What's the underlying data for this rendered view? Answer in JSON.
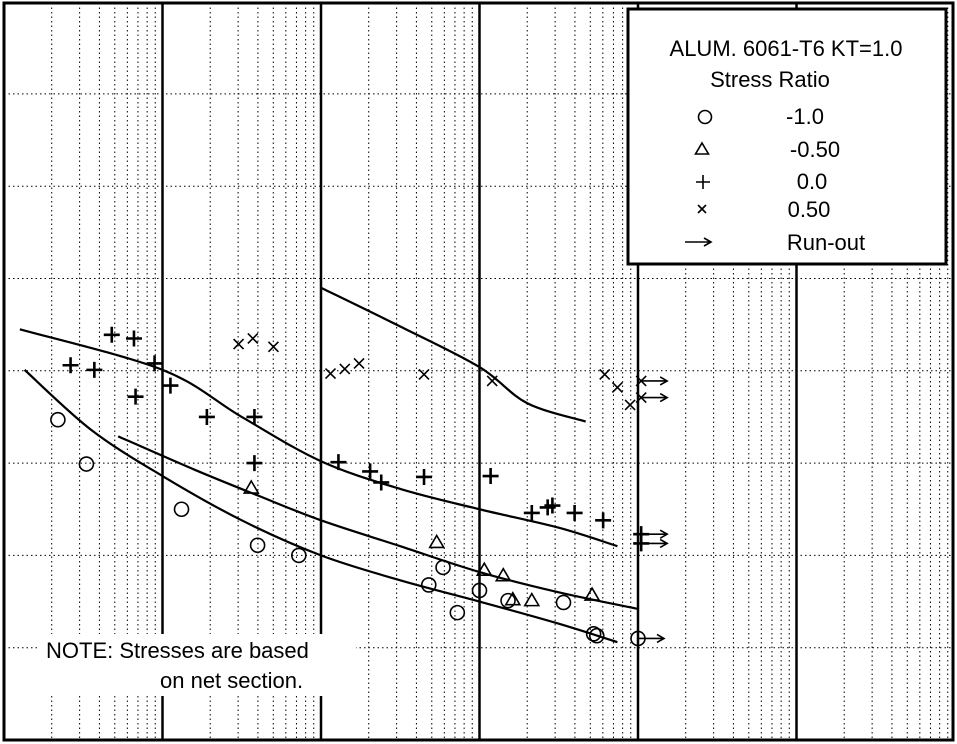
{
  "legend": {
    "title_line1": "ALUM. 6061-T6 KT=1.0",
    "title_line2": "Stress Ratio",
    "entries": [
      {
        "marker": "circle",
        "label": "-1.0"
      },
      {
        "marker": "triangle",
        "label": "-0.50"
      },
      {
        "marker": "plus",
        "label": "0.0"
      },
      {
        "marker": "x",
        "label": "0.50"
      },
      {
        "marker": "arrow",
        "label": "Run-out"
      }
    ]
  },
  "note": {
    "line1": "NOTE: Stresses are based",
    "line2": "on net section."
  },
  "chart_data": {
    "type": "scatter",
    "title": "ALUM. 6061-T6 KT=1.0",
    "legend_title": "Stress Ratio",
    "x_scale": "log",
    "x_decades": 5,
    "y_gridlines": 8,
    "x_units": "decades (log cycles from left edge)",
    "y_units": "grid units (0 = bottom, 8 = top)",
    "tick_labels_shown": false,
    "grid": true,
    "legend_position": "top-right",
    "series": [
      {
        "name": "-1.0",
        "marker": "circle",
        "points": [
          [
            0.34,
            3.47
          ],
          [
            0.52,
            2.99
          ],
          [
            1.12,
            2.5
          ],
          [
            1.6,
            2.11
          ],
          [
            1.86,
            2.0
          ],
          [
            2.68,
            1.68
          ],
          [
            2.77,
            1.87
          ],
          [
            2.86,
            1.38
          ],
          [
            3.0,
            1.62
          ],
          [
            3.18,
            1.51
          ],
          [
            3.53,
            1.49
          ],
          [
            3.72,
            1.15
          ],
          [
            3.74,
            1.13
          ],
          [
            4.0,
            1.1
          ]
        ],
        "runout": [
          [
            4.0,
            1.1
          ]
        ]
      },
      {
        "name": "-0.50",
        "marker": "triangle",
        "points": [
          [
            1.56,
            2.73
          ],
          [
            2.73,
            2.14
          ],
          [
            3.03,
            1.84
          ],
          [
            3.15,
            1.78
          ],
          [
            3.21,
            1.52
          ],
          [
            3.33,
            1.51
          ],
          [
            3.71,
            1.57
          ]
        ]
      },
      {
        "name": "0.0",
        "marker": "plus",
        "points": [
          [
            0.42,
            4.06
          ],
          [
            0.57,
            4.01
          ],
          [
            0.68,
            4.39
          ],
          [
            0.82,
            4.35
          ],
          [
            0.83,
            3.72
          ],
          [
            0.95,
            4.08
          ],
          [
            1.05,
            3.84
          ],
          [
            1.28,
            3.5
          ],
          [
            1.58,
            3.5
          ],
          [
            1.58,
            3.0
          ],
          [
            2.11,
            3.01
          ],
          [
            2.31,
            2.91
          ],
          [
            2.38,
            2.79
          ],
          [
            2.65,
            2.85
          ],
          [
            3.07,
            2.86
          ],
          [
            3.33,
            2.46
          ],
          [
            3.43,
            2.52
          ],
          [
            3.46,
            2.54
          ],
          [
            3.6,
            2.46
          ],
          [
            3.78,
            2.38
          ],
          [
            4.02,
            2.23
          ],
          [
            4.02,
            2.13
          ]
        ],
        "runout": [
          [
            4.02,
            2.23
          ],
          [
            4.02,
            2.13
          ]
        ]
      },
      {
        "name": "0.50",
        "marker": "x",
        "points": [
          [
            1.48,
            4.29
          ],
          [
            1.57,
            4.35
          ],
          [
            1.7,
            4.26
          ],
          [
            2.06,
            3.97
          ],
          [
            2.15,
            4.02
          ],
          [
            2.24,
            4.08
          ],
          [
            2.65,
            3.96
          ],
          [
            3.08,
            3.89
          ],
          [
            3.79,
            3.96
          ],
          [
            3.87,
            3.82
          ],
          [
            3.95,
            3.63
          ],
          [
            4.02,
            3.89
          ],
          [
            4.02,
            3.71
          ]
        ],
        "runout": [
          [
            4.02,
            3.89
          ],
          [
            4.02,
            3.71
          ]
        ]
      }
    ],
    "fit_curves": [
      {
        "stress_ratio": "-1.0",
        "points": [
          [
            0.13,
            4.01
          ],
          [
            0.55,
            3.36
          ],
          [
            1.0,
            2.86
          ],
          [
            1.5,
            2.38
          ],
          [
            2.0,
            2.0
          ],
          [
            2.5,
            1.73
          ],
          [
            3.0,
            1.5
          ],
          [
            3.5,
            1.26
          ],
          [
            3.87,
            1.06
          ]
        ]
      },
      {
        "stress_ratio": "-0.50",
        "points": [
          [
            0.72,
            3.29
          ],
          [
            1.2,
            2.93
          ],
          [
            1.6,
            2.65
          ],
          [
            2.0,
            2.38
          ],
          [
            2.5,
            2.1
          ],
          [
            3.0,
            1.82
          ],
          [
            3.5,
            1.6
          ],
          [
            4.0,
            1.42
          ]
        ]
      },
      {
        "stress_ratio": "0.0",
        "points": [
          [
            0.1,
            4.45
          ],
          [
            1.0,
            4.01
          ],
          [
            1.5,
            3.5
          ],
          [
            2.0,
            3.02
          ],
          [
            2.5,
            2.72
          ],
          [
            3.0,
            2.5
          ],
          [
            3.5,
            2.3
          ],
          [
            3.87,
            2.1
          ]
        ]
      },
      {
        "stress_ratio": "0.50",
        "points": [
          [
            2.0,
            4.9
          ],
          [
            2.5,
            4.48
          ],
          [
            3.0,
            4.04
          ],
          [
            3.3,
            3.65
          ],
          [
            3.67,
            3.45
          ]
        ]
      }
    ]
  }
}
